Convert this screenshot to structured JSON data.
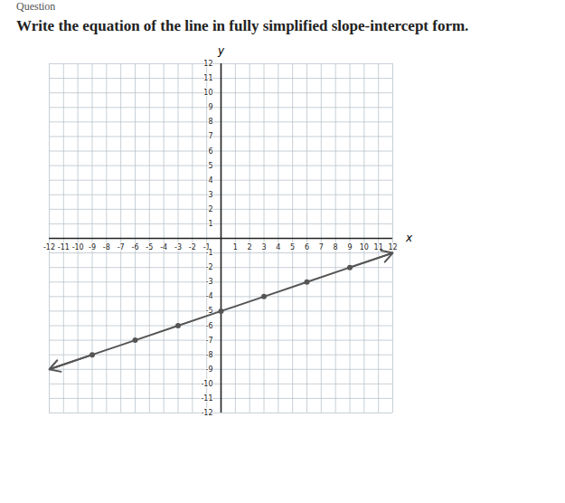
{
  "header": {
    "kicker": "Question"
  },
  "chart_data": {
    "type": "line",
    "title": "Write the equation of the line in fully simplified slope-intercept form.",
    "x_label": "x",
    "y_label": "y",
    "x": [
      -12,
      -9,
      -6,
      -3,
      0,
      3,
      6,
      9,
      12
    ],
    "series": [
      {
        "name": "line",
        "color": "#555555",
        "marker": "circle",
        "values": [
          -9,
          -8,
          -7,
          -6,
          -5,
          -4,
          -3,
          -2,
          -1
        ]
      }
    ],
    "xlim": [
      -12,
      12
    ],
    "ylim": [
      -12,
      12
    ],
    "xticks": [
      -12,
      -11,
      -10,
      -9,
      -8,
      -7,
      -6,
      -5,
      -4,
      -3,
      -2,
      -1,
      1,
      2,
      3,
      4,
      5,
      6,
      7,
      8,
      9,
      10,
      11,
      12
    ],
    "yticks": [
      -12,
      -11,
      -10,
      -9,
      -8,
      -7,
      -6,
      -5,
      -4,
      -3,
      -2,
      -1,
      1,
      2,
      3,
      4,
      5,
      6,
      7,
      8,
      9,
      10,
      11,
      12
    ],
    "grid": true
  }
}
